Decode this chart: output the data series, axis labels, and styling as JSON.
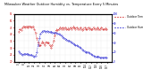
{
  "title": "Milwaukee Weather Outdoor Humidity vs. Temperature Every 5 Minutes",
  "temp_color": "#cc0000",
  "humidity_color": "#0000cc",
  "background_color": "#ffffff",
  "grid_color": "#cccccc",
  "temp": [
    42,
    43,
    44,
    43,
    43,
    44,
    45,
    45,
    46,
    46,
    45,
    46,
    46,
    45,
    45,
    46,
    46,
    46,
    46,
    45,
    45,
    46,
    46,
    45,
    44,
    43,
    41,
    39,
    37,
    35,
    34,
    33,
    32,
    31,
    32,
    33,
    34,
    35,
    34,
    33,
    32,
    33,
    34,
    35,
    34,
    33,
    34,
    33,
    32,
    31,
    30,
    31,
    32,
    33,
    35,
    37,
    39,
    41,
    43,
    44,
    43,
    43,
    44,
    44,
    45,
    45,
    44,
    44,
    45,
    45,
    44,
    44,
    45,
    45,
    44,
    43,
    44,
    45,
    44,
    44,
    45,
    44,
    44,
    45,
    45,
    46,
    45,
    44,
    44,
    45,
    45,
    45,
    44,
    44,
    44,
    45,
    45,
    44,
    43,
    44,
    44,
    45,
    45,
    45,
    44,
    43,
    44,
    45,
    45,
    44,
    44,
    45,
    44,
    43,
    44,
    45,
    45,
    44,
    44,
    44,
    44,
    44,
    45,
    45,
    44,
    43,
    44,
    44,
    45,
    45,
    44,
    43,
    44,
    44,
    44,
    45,
    44,
    43
  ],
  "hum": [
    22,
    20,
    18,
    17,
    16,
    15,
    14,
    15,
    16,
    17,
    16,
    15,
    16,
    17,
    16,
    15,
    14,
    13,
    14,
    15,
    14,
    13,
    12,
    11,
    10,
    11,
    12,
    15,
    20,
    28,
    35,
    42,
    50,
    55,
    58,
    60,
    62,
    64,
    64,
    65,
    65,
    64,
    63,
    63,
    64,
    64,
    63,
    62,
    62,
    63,
    63,
    62,
    61,
    61,
    60,
    60,
    61,
    61,
    60,
    60,
    59,
    58,
    58,
    57,
    56,
    55,
    54,
    53,
    52,
    51,
    50,
    49,
    48,
    47,
    46,
    45,
    44,
    43,
    44,
    43,
    42,
    41,
    40,
    39,
    38,
    37,
    36,
    35,
    34,
    33,
    34,
    33,
    32,
    31,
    30,
    29,
    28,
    27,
    26,
    25,
    24,
    23,
    22,
    21,
    20,
    19,
    20,
    21,
    20,
    19,
    18,
    17,
    16,
    15,
    14,
    13,
    12,
    11,
    10,
    11,
    10,
    9,
    10,
    11,
    10,
    9,
    8,
    7,
    8,
    9,
    8,
    7,
    8,
    9,
    8,
    9,
    8,
    7
  ],
  "ylim_temp": [
    20,
    55
  ],
  "ylim_hum": [
    0,
    100
  ],
  "legend_temp": "Outdoor Temp",
  "legend_hum": "Outdoor Humidity"
}
